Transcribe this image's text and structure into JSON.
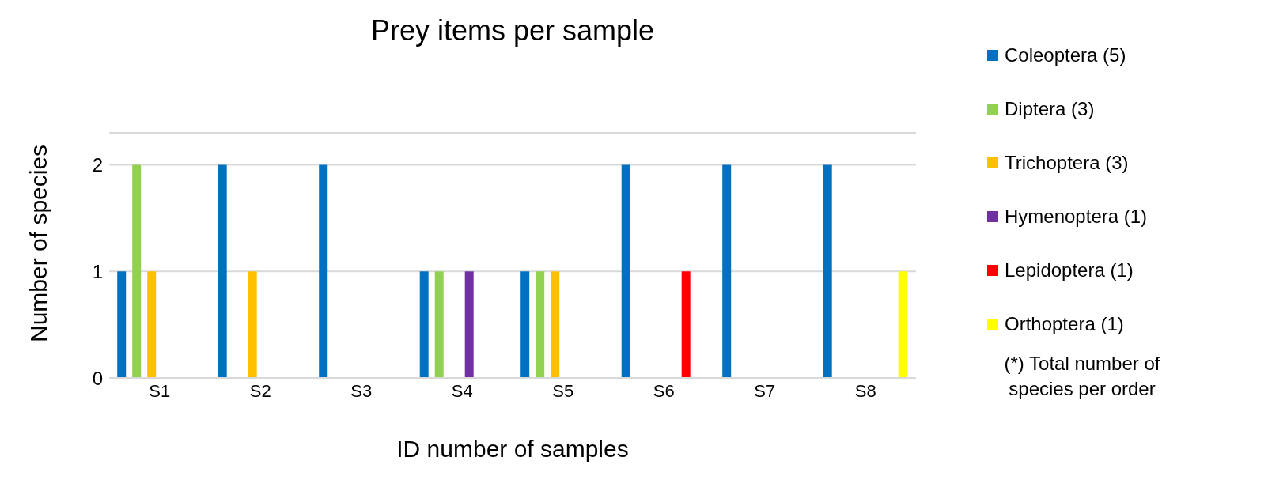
{
  "chart_data": {
    "type": "bar",
    "title": "Prey items per sample",
    "xlabel": "ID number of samples",
    "ylabel": "Number of species",
    "categories": [
      "S1",
      "S2",
      "S3",
      "S4",
      "S5",
      "S6",
      "S7",
      "S8"
    ],
    "series": [
      {
        "name": "Coleoptera (5)",
        "color": "#0070c0",
        "values": [
          1,
          2,
          2,
          1,
          1,
          2,
          2,
          2
        ]
      },
      {
        "name": "Diptera (3)",
        "color": "#92d050",
        "values": [
          2,
          0,
          0,
          1,
          1,
          0,
          0,
          0
        ]
      },
      {
        "name": "Trichoptera (3)",
        "color": "#ffc000",
        "values": [
          1,
          1,
          0,
          0,
          1,
          0,
          0,
          0
        ]
      },
      {
        "name": "Hymenoptera (1)",
        "color": "#7030a0",
        "values": [
          0,
          0,
          0,
          1,
          0,
          0,
          0,
          0
        ]
      },
      {
        "name": "Lepidoptera (1)",
        "color": "#ff0000",
        "values": [
          0,
          0,
          0,
          0,
          0,
          1,
          0,
          0
        ]
      },
      {
        "name": "Orthoptera (1)",
        "color": "#ffff00",
        "values": [
          0,
          0,
          0,
          0,
          0,
          0,
          0,
          1
        ]
      }
    ],
    "ylim": [
      0,
      2.3
    ],
    "yticks": [
      0,
      1,
      2
    ],
    "grid": "y",
    "legend": "right",
    "annotations": [
      "(*) Total number of species per order"
    ]
  }
}
